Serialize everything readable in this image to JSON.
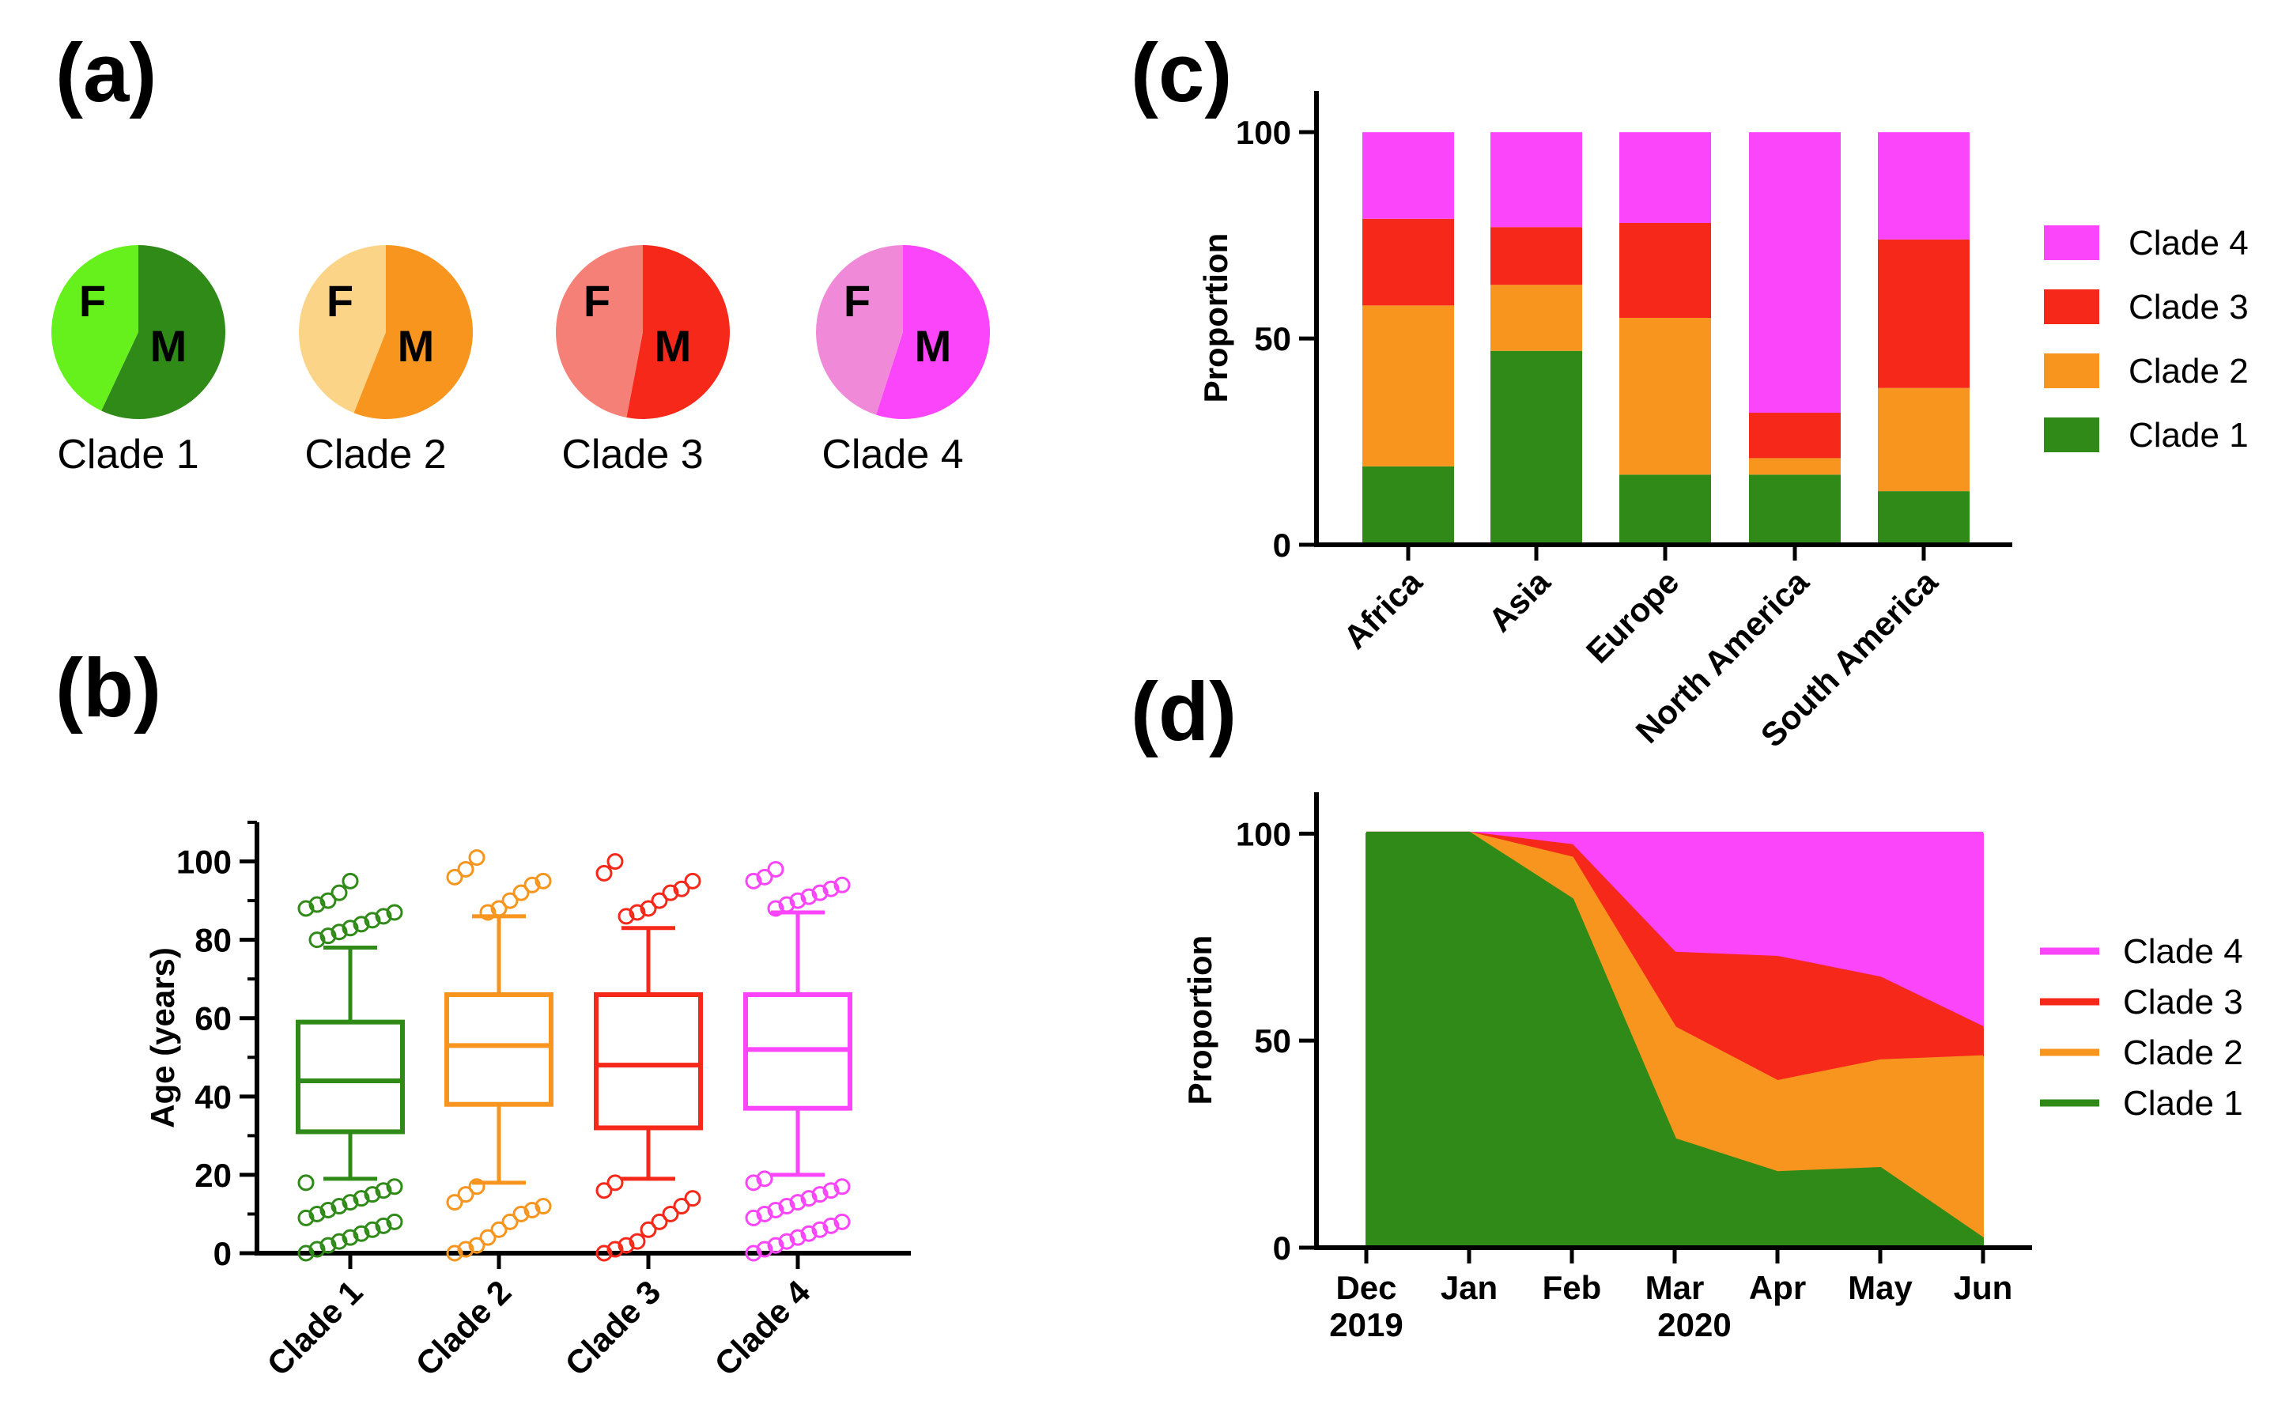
{
  "panels": {
    "a": "(a)",
    "b": "(b)",
    "c": "(c)",
    "d": "(d)"
  },
  "colors": {
    "clade1": "#2f8a18",
    "clade2": "#f7951e",
    "clade3": "#f5281a",
    "clade4": "#fa45fa",
    "clade1_pie_light": "#66f01c",
    "clade2_pie_light": "#fcd488",
    "clade3_pie_light": "#f58078",
    "clade4_pie_light": "#f08ad8"
  },
  "chart_data": [
    {
      "id": "a",
      "type": "pie",
      "female_label": "F",
      "male_label": "M",
      "pies": [
        {
          "name": "Clade 1",
          "values": {
            "F": 43,
            "M": 57
          }
        },
        {
          "name": "Clade 2",
          "values": {
            "F": 44,
            "M": 56
          }
        },
        {
          "name": "Clade 3",
          "values": {
            "F": 47,
            "M": 53
          }
        },
        {
          "name": "Clade 4",
          "values": {
            "F": 45,
            "M": 55
          }
        }
      ]
    },
    {
      "id": "b",
      "type": "box",
      "ylabel": "Age (years)",
      "ylim": [
        0,
        110
      ],
      "yticks": [
        0,
        20,
        40,
        60,
        80,
        100
      ],
      "categories": [
        "Clade 1",
        "Clade 2",
        "Clade 3",
        "Clade 4"
      ],
      "boxes": [
        {
          "name": "Clade 1",
          "whisker_low": 19,
          "q1": 31,
          "median": 44,
          "q3": 59,
          "whisker_high": 78,
          "outliers": [
            0,
            1,
            2,
            3,
            4,
            5,
            6,
            7,
            8,
            9,
            10,
            11,
            12,
            13,
            14,
            15,
            16,
            17,
            18,
            80,
            81,
            82,
            83,
            84,
            85,
            86,
            87,
            88,
            89,
            90,
            92,
            95
          ]
        },
        {
          "name": "Clade 2",
          "whisker_low": 18,
          "q1": 38,
          "median": 53,
          "q3": 66,
          "whisker_high": 86,
          "outliers": [
            0,
            1,
            2,
            4,
            6,
            8,
            10,
            11,
            12,
            13,
            15,
            17,
            87,
            88,
            90,
            92,
            94,
            95,
            96,
            98,
            101
          ]
        },
        {
          "name": "Clade 3",
          "whisker_low": 19,
          "q1": 32,
          "median": 48,
          "q3": 66,
          "whisker_high": 83,
          "outliers": [
            0,
            1,
            2,
            3,
            6,
            8,
            10,
            12,
            14,
            16,
            18,
            86,
            87,
            88,
            90,
            92,
            93,
            95,
            97,
            100
          ]
        },
        {
          "name": "Clade 4",
          "whisker_low": 20,
          "q1": 37,
          "median": 52,
          "q3": 66,
          "whisker_high": 87,
          "outliers": [
            0,
            1,
            2,
            3,
            4,
            5,
            6,
            7,
            8,
            9,
            10,
            11,
            12,
            13,
            14,
            15,
            16,
            17,
            18,
            19,
            88,
            89,
            90,
            91,
            92,
            93,
            94,
            95,
            96,
            98
          ]
        }
      ]
    },
    {
      "id": "c",
      "type": "bar",
      "stacked": true,
      "ylabel": "Proportion",
      "ylim": [
        0,
        110
      ],
      "yticks": [
        0,
        50,
        100
      ],
      "categories": [
        "Africa",
        "Asia",
        "Europe",
        "North America",
        "South America"
      ],
      "series": [
        {
          "name": "Clade 1",
          "color_key": "clade1",
          "values": [
            19,
            47,
            17,
            17,
            13
          ]
        },
        {
          "name": "Clade 2",
          "color_key": "clade2",
          "values": [
            39,
            16,
            38,
            4,
            25
          ]
        },
        {
          "name": "Clade 3",
          "color_key": "clade3",
          "values": [
            21,
            14,
            23,
            11,
            36
          ]
        },
        {
          "name": "Clade 4",
          "color_key": "clade4",
          "values": [
            21,
            23,
            22,
            68,
            26
          ]
        }
      ],
      "legend": [
        "Clade 4",
        "Clade 3",
        "Clade 2",
        "Clade 1"
      ]
    },
    {
      "id": "d",
      "type": "area",
      "stacked": true,
      "ylabel": "Proportion",
      "ylim": [
        0,
        110
      ],
      "yticks": [
        0,
        50,
        100
      ],
      "x": [
        "Dec",
        "Jan",
        "Feb",
        "Mar",
        "Apr",
        "May",
        "Jun"
      ],
      "year_labels": [
        {
          "text": "2019",
          "at": "Dec"
        },
        {
          "text": "2020",
          "at": "Mar"
        }
      ],
      "series": [
        {
          "name": "Clade 1",
          "color_key": "clade1",
          "values": [
            100,
            100,
            84,
            26,
            18,
            19,
            2
          ]
        },
        {
          "name": "Clade 2",
          "color_key": "clade2",
          "values": [
            0,
            0,
            10,
            27,
            22,
            26,
            44
          ]
        },
        {
          "name": "Clade 3",
          "color_key": "clade3",
          "values": [
            0,
            0,
            3,
            18,
            30,
            20,
            7
          ]
        },
        {
          "name": "Clade 4",
          "color_key": "clade4",
          "values": [
            0,
            0,
            3,
            29,
            30,
            35,
            47
          ]
        }
      ],
      "legend": [
        "Clade 4",
        "Clade 3",
        "Clade 2",
        "Clade 1"
      ]
    }
  ]
}
